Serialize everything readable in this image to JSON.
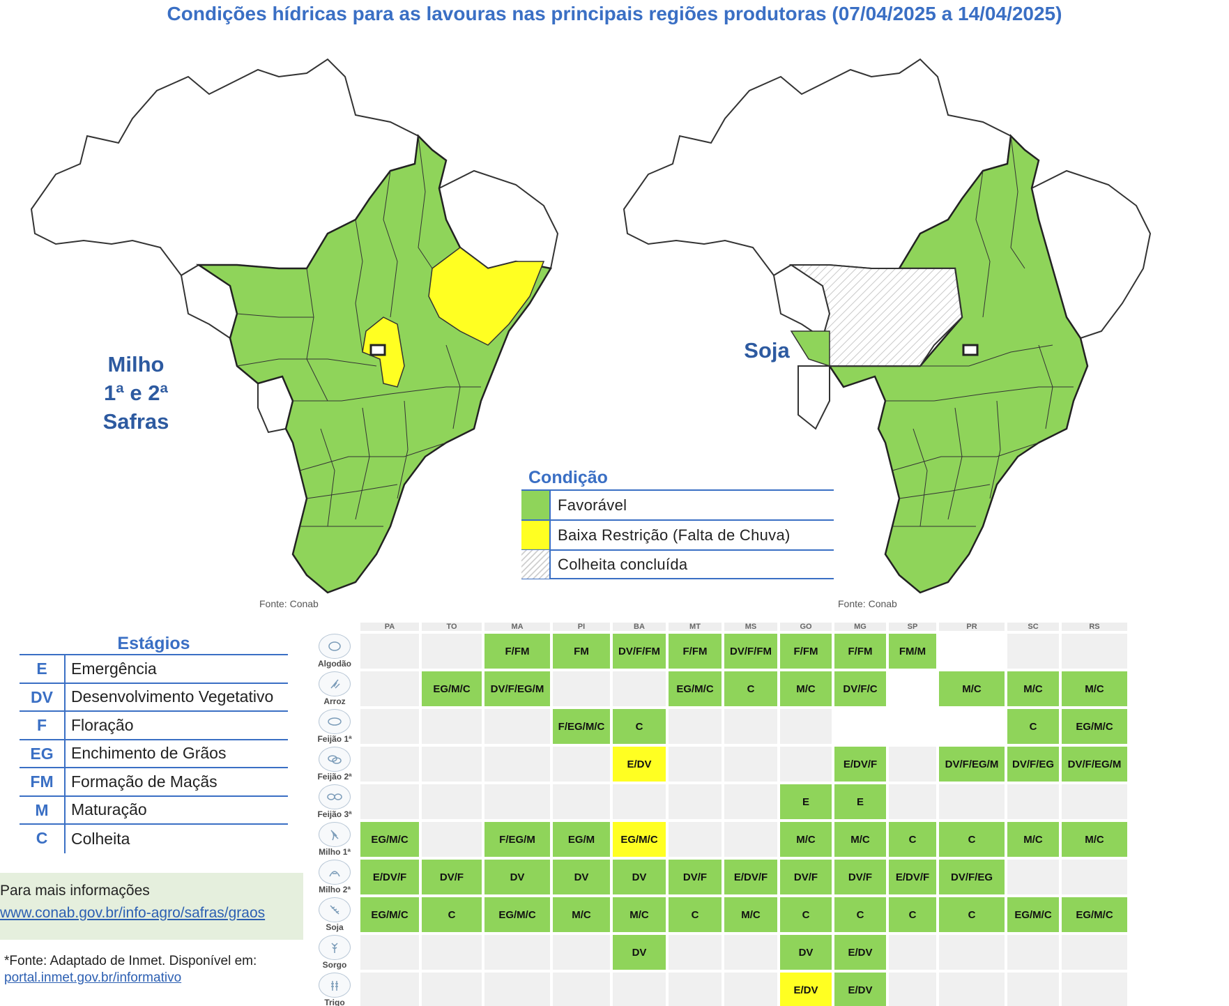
{
  "title": "Condições hídricas para as lavouras nas principais regiões produtoras (07/04/2025 a 14/04/2025)",
  "maps": {
    "milho": {
      "label": "Milho\n1ª e 2ª\nSafras",
      "source": "Fonte: Conab"
    },
    "soja": {
      "label": "Soja",
      "source": "Fonte: Conab"
    }
  },
  "legend": {
    "title": "Condição",
    "items": [
      {
        "label": "Favorável",
        "color": "#8fd45a"
      },
      {
        "label": "Baixa Restrição (Falta de Chuva)",
        "color": "#ffff22"
      },
      {
        "label": "Colheita concluída",
        "color": "hatch"
      }
    ]
  },
  "stages": {
    "title": "Estágios",
    "items": [
      {
        "code": "E",
        "label": "Emergência"
      },
      {
        "code": "DV",
        "label": "Desenvolvimento Vegetativo"
      },
      {
        "code": "F",
        "label": "Floração"
      },
      {
        "code": "EG",
        "label": "Enchimento de Grãos"
      },
      {
        "code": "FM",
        "label": "Formação de Maçãs"
      },
      {
        "code": "M",
        "label": "Maturação"
      },
      {
        "code": "C",
        "label": "Colheita"
      }
    ]
  },
  "info": {
    "title": "Para mais informações",
    "link": "www.conab.gov.br/info-agro/safras/graos"
  },
  "footnote": {
    "text": "*Fonte: Adaptado de Inmet. Disponível em:",
    "link": "portal.inmet.gov.br/informativo"
  },
  "table": {
    "states": [
      "PA",
      "TO",
      "MA",
      "PI",
      "BA",
      "MT",
      "MS",
      "GO",
      "MG",
      "SP",
      "PR",
      "SC",
      "RS"
    ],
    "colors": {
      "g": "#8fd45a",
      "y": "#ffff22",
      "e": "#f0f0f0",
      "w": "#ffffff"
    },
    "rows": [
      {
        "crop": "Algodão",
        "cells": [
          [
            "",
            "e"
          ],
          [
            "",
            "e"
          ],
          [
            "F/FM",
            "g"
          ],
          [
            "FM",
            "g"
          ],
          [
            "DV/F/FM",
            "g"
          ],
          [
            "F/FM",
            "g"
          ],
          [
            "DV/F/FM",
            "g"
          ],
          [
            "F/FM",
            "g"
          ],
          [
            "F/FM",
            "g"
          ],
          [
            "FM/M",
            "g"
          ],
          [
            "",
            "w"
          ],
          [
            "",
            "e"
          ],
          [
            "",
            "e"
          ]
        ]
      },
      {
        "crop": "Arroz",
        "cells": [
          [
            "",
            "e"
          ],
          [
            "EG/M/C",
            "g"
          ],
          [
            "DV/F/EG/M",
            "g"
          ],
          [
            "",
            "e"
          ],
          [
            "",
            "e"
          ],
          [
            "EG/M/C",
            "g"
          ],
          [
            "C",
            "g"
          ],
          [
            "M/C",
            "g"
          ],
          [
            "DV/F/C",
            "g"
          ],
          [
            "",
            "w"
          ],
          [
            "M/C",
            "g"
          ],
          [
            "M/C",
            "g"
          ],
          [
            "M/C",
            "g"
          ]
        ]
      },
      {
        "crop": "Feijão 1ª",
        "cells": [
          [
            "",
            "e"
          ],
          [
            "",
            "e"
          ],
          [
            "",
            "e"
          ],
          [
            "F/EG/M/C",
            "g"
          ],
          [
            "C",
            "g"
          ],
          [
            "",
            "e"
          ],
          [
            "",
            "e"
          ],
          [
            "",
            "e"
          ],
          [
            "",
            "w"
          ],
          [
            "",
            "w"
          ],
          [
            "",
            "w"
          ],
          [
            "C",
            "g"
          ],
          [
            "EG/M/C",
            "g"
          ]
        ]
      },
      {
        "crop": "Feijão 2ª",
        "cells": [
          [
            "",
            "e"
          ],
          [
            "",
            "e"
          ],
          [
            "",
            "e"
          ],
          [
            "",
            "e"
          ],
          [
            "E/DV",
            "y"
          ],
          [
            "",
            "e"
          ],
          [
            "",
            "e"
          ],
          [
            "",
            "e"
          ],
          [
            "E/DV/F",
            "g"
          ],
          [
            "",
            "e"
          ],
          [
            "DV/F/EG/M",
            "g"
          ],
          [
            "DV/F/EG",
            "g"
          ],
          [
            "DV/F/EG/M",
            "g"
          ]
        ]
      },
      {
        "crop": "Feijão 3ª",
        "cells": [
          [
            "",
            "e"
          ],
          [
            "",
            "e"
          ],
          [
            "",
            "e"
          ],
          [
            "",
            "e"
          ],
          [
            "",
            "e"
          ],
          [
            "",
            "e"
          ],
          [
            "",
            "e"
          ],
          [
            "E",
            "g"
          ],
          [
            "E",
            "g"
          ],
          [
            "",
            "e"
          ],
          [
            "",
            "e"
          ],
          [
            "",
            "e"
          ],
          [
            "",
            "e"
          ]
        ]
      },
      {
        "crop": "Milho 1ª",
        "cells": [
          [
            "EG/M/C",
            "g"
          ],
          [
            "",
            "e"
          ],
          [
            "F/EG/M",
            "g"
          ],
          [
            "EG/M",
            "g"
          ],
          [
            "EG/M/C",
            "y"
          ],
          [
            "",
            "e"
          ],
          [
            "",
            "e"
          ],
          [
            "M/C",
            "g"
          ],
          [
            "M/C",
            "g"
          ],
          [
            "C",
            "g"
          ],
          [
            "C",
            "g"
          ],
          [
            "M/C",
            "g"
          ],
          [
            "M/C",
            "g"
          ]
        ]
      },
      {
        "crop": "Milho 2ª",
        "cells": [
          [
            "E/DV/F",
            "g"
          ],
          [
            "DV/F",
            "g"
          ],
          [
            "DV",
            "g"
          ],
          [
            "DV",
            "g"
          ],
          [
            "DV",
            "g"
          ],
          [
            "DV/F",
            "g"
          ],
          [
            "E/DV/F",
            "g"
          ],
          [
            "DV/F",
            "g"
          ],
          [
            "DV/F",
            "g"
          ],
          [
            "E/DV/F",
            "g"
          ],
          [
            "DV/F/EG",
            "g"
          ],
          [
            "",
            "e"
          ],
          [
            "",
            "e"
          ]
        ]
      },
      {
        "crop": "Soja",
        "cells": [
          [
            "EG/M/C",
            "g"
          ],
          [
            "C",
            "g"
          ],
          [
            "EG/M/C",
            "g"
          ],
          [
            "M/C",
            "g"
          ],
          [
            "M/C",
            "g"
          ],
          [
            "C",
            "g"
          ],
          [
            "M/C",
            "g"
          ],
          [
            "C",
            "g"
          ],
          [
            "C",
            "g"
          ],
          [
            "C",
            "g"
          ],
          [
            "C",
            "g"
          ],
          [
            "EG/M/C",
            "g"
          ],
          [
            "EG/M/C",
            "g"
          ]
        ]
      },
      {
        "crop": "Sorgo",
        "cells": [
          [
            "",
            "e"
          ],
          [
            "",
            "e"
          ],
          [
            "",
            "e"
          ],
          [
            "",
            "e"
          ],
          [
            "DV",
            "g"
          ],
          [
            "",
            "e"
          ],
          [
            "",
            "e"
          ],
          [
            "DV",
            "g"
          ],
          [
            "E/DV",
            "g"
          ],
          [
            "",
            "e"
          ],
          [
            "",
            "e"
          ],
          [
            "",
            "e"
          ],
          [
            "",
            "e"
          ]
        ]
      },
      {
        "crop": "Trigo",
        "cells": [
          [
            "",
            "e"
          ],
          [
            "",
            "e"
          ],
          [
            "",
            "e"
          ],
          [
            "",
            "e"
          ],
          [
            "",
            "e"
          ],
          [
            "",
            "e"
          ],
          [
            "",
            "e"
          ],
          [
            "E/DV",
            "y"
          ],
          [
            "E/DV",
            "g"
          ],
          [
            "",
            "e"
          ],
          [
            "",
            "e"
          ],
          [
            "",
            "e"
          ],
          [
            "",
            "e"
          ]
        ]
      }
    ]
  }
}
